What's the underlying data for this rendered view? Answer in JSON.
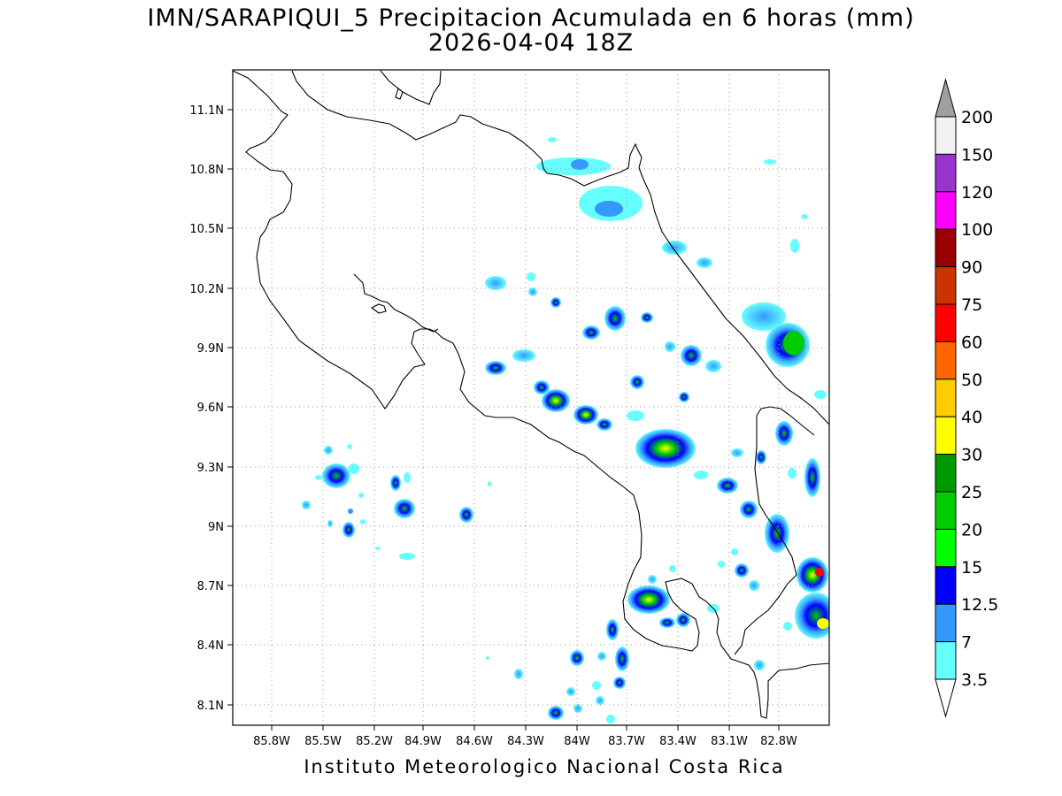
{
  "title": {
    "line1": "IMN/SARAPIQUI_5 Precipitacion Acumulada en 6 horas (mm)",
    "line2": "2026-04-04 18Z"
  },
  "credit": "Instituto Meteorologico Nacional Costa Rica",
  "map": {
    "lon_labels": [
      "85.8W",
      "85.5W",
      "85.2W",
      "84.9W",
      "84.6W",
      "84.3W",
      "84W",
      "83.7W",
      "83.4W",
      "83.1W",
      "82.8W"
    ],
    "lat_labels": [
      "11.1N",
      "10.8N",
      "10.5N",
      "10.2N",
      "9.9N",
      "9.6N",
      "9.3N",
      "9N",
      "8.7N",
      "8.4N",
      "8.1N"
    ],
    "grid": "dotted"
  },
  "colorbar": {
    "labels": [
      "200",
      "150",
      "120",
      "100",
      "90",
      "75",
      "60",
      "50",
      "40",
      "30",
      "25",
      "20",
      "15",
      "12.5",
      "7",
      "3.5"
    ],
    "colors": [
      "#a0a0a0",
      "#f2f2f2",
      "#9933cc",
      "#ff00ff",
      "#990000",
      "#cc3300",
      "#ff0000",
      "#ff6600",
      "#ffcc00",
      "#ffff00",
      "#009900",
      "#00cc00",
      "#00ff00",
      "#0000ff",
      "#3399ff",
      "#66ffff",
      "#ffffff"
    ]
  }
}
